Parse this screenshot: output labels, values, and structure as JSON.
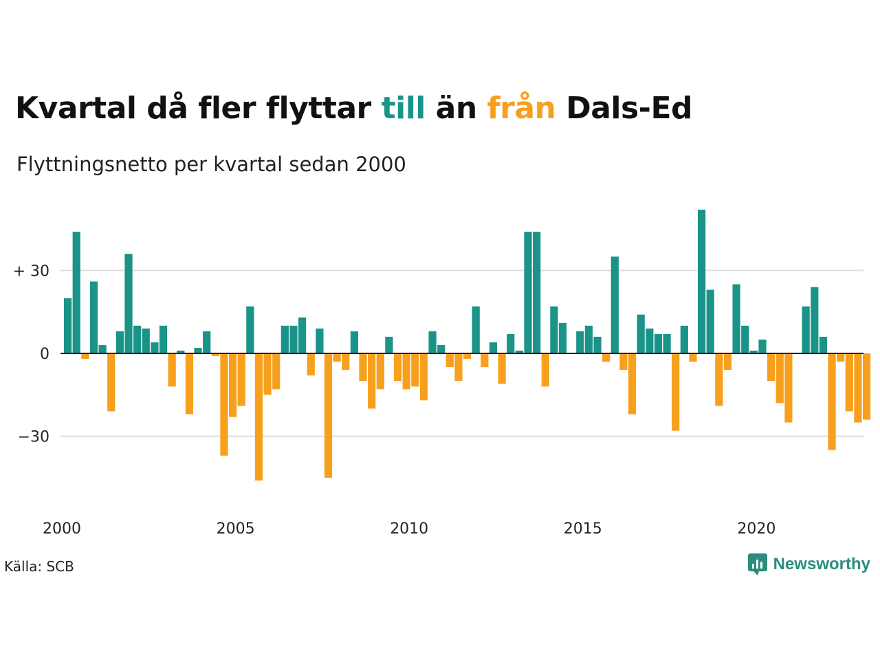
{
  "title": {
    "part1": "Kvartal då fler flyttar ",
    "highlight_in": "till",
    "part2": " än ",
    "highlight_out": "från",
    "part3": " Dals-Ed"
  },
  "subtitle": "Flyttningsnetto per kvartal sedan 2000",
  "source": "Källa: SCB",
  "brand": {
    "name": "Newsworthy",
    "icon": "newsworthy-logo-icon"
  },
  "colors": {
    "positive": "#1a9388",
    "negative": "#f7a01e",
    "grid": "#dddddd"
  },
  "chart_data": {
    "type": "bar",
    "title": "Kvartal då fler flyttar till än från Dals-Ed",
    "subtitle": "Flyttningsnetto per kvartal sedan 2000",
    "x_start": "2000 Q1",
    "x_tick_labels": [
      "2000",
      "2005",
      "2010",
      "2015",
      "2020"
    ],
    "y_tick_labels": [
      "+ 30",
      "0",
      "−30"
    ],
    "y_ticks": [
      30,
      0,
      -30
    ],
    "ylim": [
      -52,
      55
    ],
    "grid": "horizontal",
    "values": [
      20,
      44,
      -2,
      26,
      3,
      -21,
      8,
      36,
      10,
      9,
      4,
      10,
      -12,
      1,
      -22,
      2,
      8,
      -1,
      -37,
      -23,
      -19,
      17,
      -46,
      -15,
      -13,
      10,
      10,
      13,
      -8,
      9,
      -45,
      -3,
      -6,
      8,
      -10,
      -20,
      -13,
      6,
      -10,
      -13,
      -12,
      -17,
      8,
      3,
      -5,
      -10,
      -2,
      17,
      -5,
      4,
      -11,
      7,
      1,
      44,
      44,
      -12,
      17,
      11,
      0,
      8,
      10,
      6,
      -3,
      35,
      -6,
      -22,
      14,
      9,
      7,
      7,
      -28,
      10,
      -3,
      52,
      23,
      -19,
      -6,
      25,
      10,
      1,
      5,
      -10,
      -18,
      -25,
      0,
      17,
      24,
      6,
      -35,
      -3,
      -21,
      -25,
      -24
    ]
  }
}
